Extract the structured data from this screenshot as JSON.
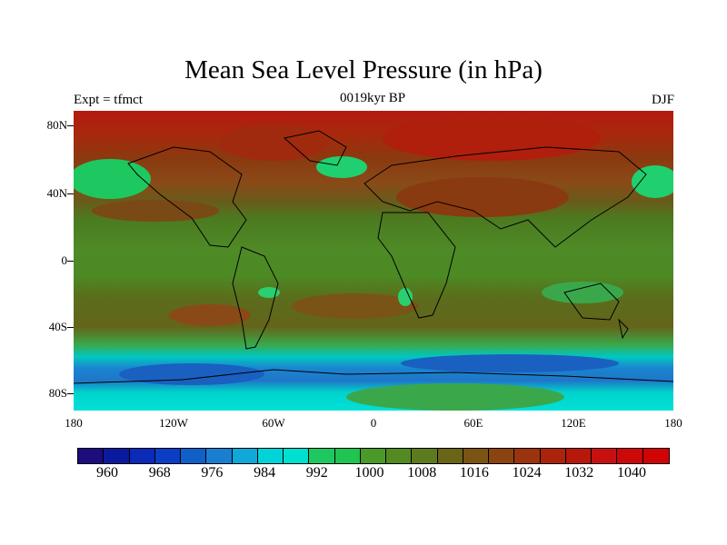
{
  "title": "Mean Sea Level Pressure (in hPa)",
  "subtitle_left": "Expt = tfmct",
  "subtitle_center": "0019kyr BP",
  "subtitle_right": "DJF",
  "y_ticks": [
    "80N",
    "40N",
    "0",
    "40S",
    "80S"
  ],
  "x_ticks": [
    "180",
    "120W",
    "60W",
    "0",
    "60E",
    "120E",
    "180"
  ],
  "colorbar": {
    "labels": [
      "960",
      "968",
      "976",
      "984",
      "992",
      "1000",
      "1008",
      "1016",
      "1024",
      "1032",
      "1040"
    ],
    "colors": [
      "#1c0c7c",
      "#0a1a9e",
      "#0b2ab8",
      "#0a3fc4",
      "#1060c8",
      "#1a7ed0",
      "#10a8d8",
      "#00d4d8",
      "#00e0d0",
      "#1ec860",
      "#20c450",
      "#4a9a2a",
      "#548a22",
      "#5e7a1e",
      "#6a6418",
      "#7a5414",
      "#8a4410",
      "#9a340e",
      "#aa240c",
      "#b6180c",
      "#c81010",
      "#cc0808",
      "#d00404"
    ]
  }
}
